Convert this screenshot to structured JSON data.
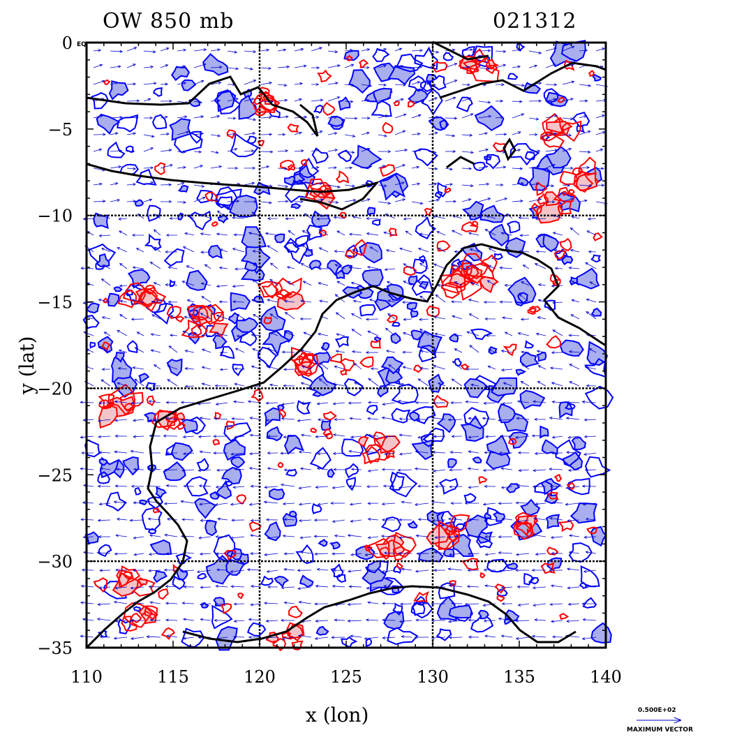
{
  "map": {
    "title_left": "OW 850 mb",
    "title_right": "021312",
    "xlabel": "x (lon)",
    "ylabel": "y (lat)",
    "x_ticks": [
      "110",
      "115",
      "120",
      "125",
      "130",
      "135",
      "140"
    ],
    "y_ticks": [
      "0",
      "−5",
      "−10",
      "−15",
      "−20",
      "−25",
      "−30",
      "−35"
    ],
    "y_top_suffix": "EQ",
    "xlim": [
      110,
      140
    ],
    "ylim": [
      -35,
      0
    ],
    "grid_lines_lon": [
      120,
      130
    ],
    "grid_lines_lat": [
      -10,
      -20,
      -30
    ],
    "legend": {
      "scale_value": "0.500E+02",
      "scale_caption": "MAXIMUM VECTOR"
    },
    "colors": {
      "positive_contour": "#ff0000",
      "positive_fill": "#f4c4c8",
      "negative_contour": "#0000ff",
      "negative_fill": "#a8aeee",
      "vectors": "#0000cc",
      "coastline": "#000000"
    }
  }
}
